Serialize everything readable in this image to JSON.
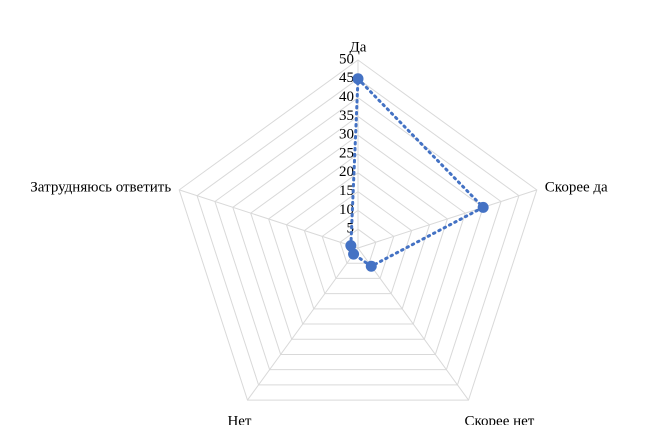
{
  "chart_data": {
    "type": "radar",
    "title": "",
    "categories": [
      "Да",
      "Скорее да",
      "Скорее нет",
      "Нет",
      "Затрудняюсь ответить"
    ],
    "series": [
      {
        "values": [
          45,
          35,
          6,
          2,
          2
        ]
      }
    ],
    "rlim": [
      0,
      50
    ],
    "ticks": [
      0,
      5,
      10,
      15,
      20,
      25,
      30,
      35,
      40,
      45,
      50
    ],
    "tick_labels": [
      "0",
      "5",
      "10",
      "15",
      "20",
      "25",
      "30",
      "35",
      "40",
      "45",
      "50"
    ],
    "grid": true,
    "legend": "none",
    "colors": {
      "series": "#4472c4",
      "grid": "#d9d9d9"
    }
  }
}
